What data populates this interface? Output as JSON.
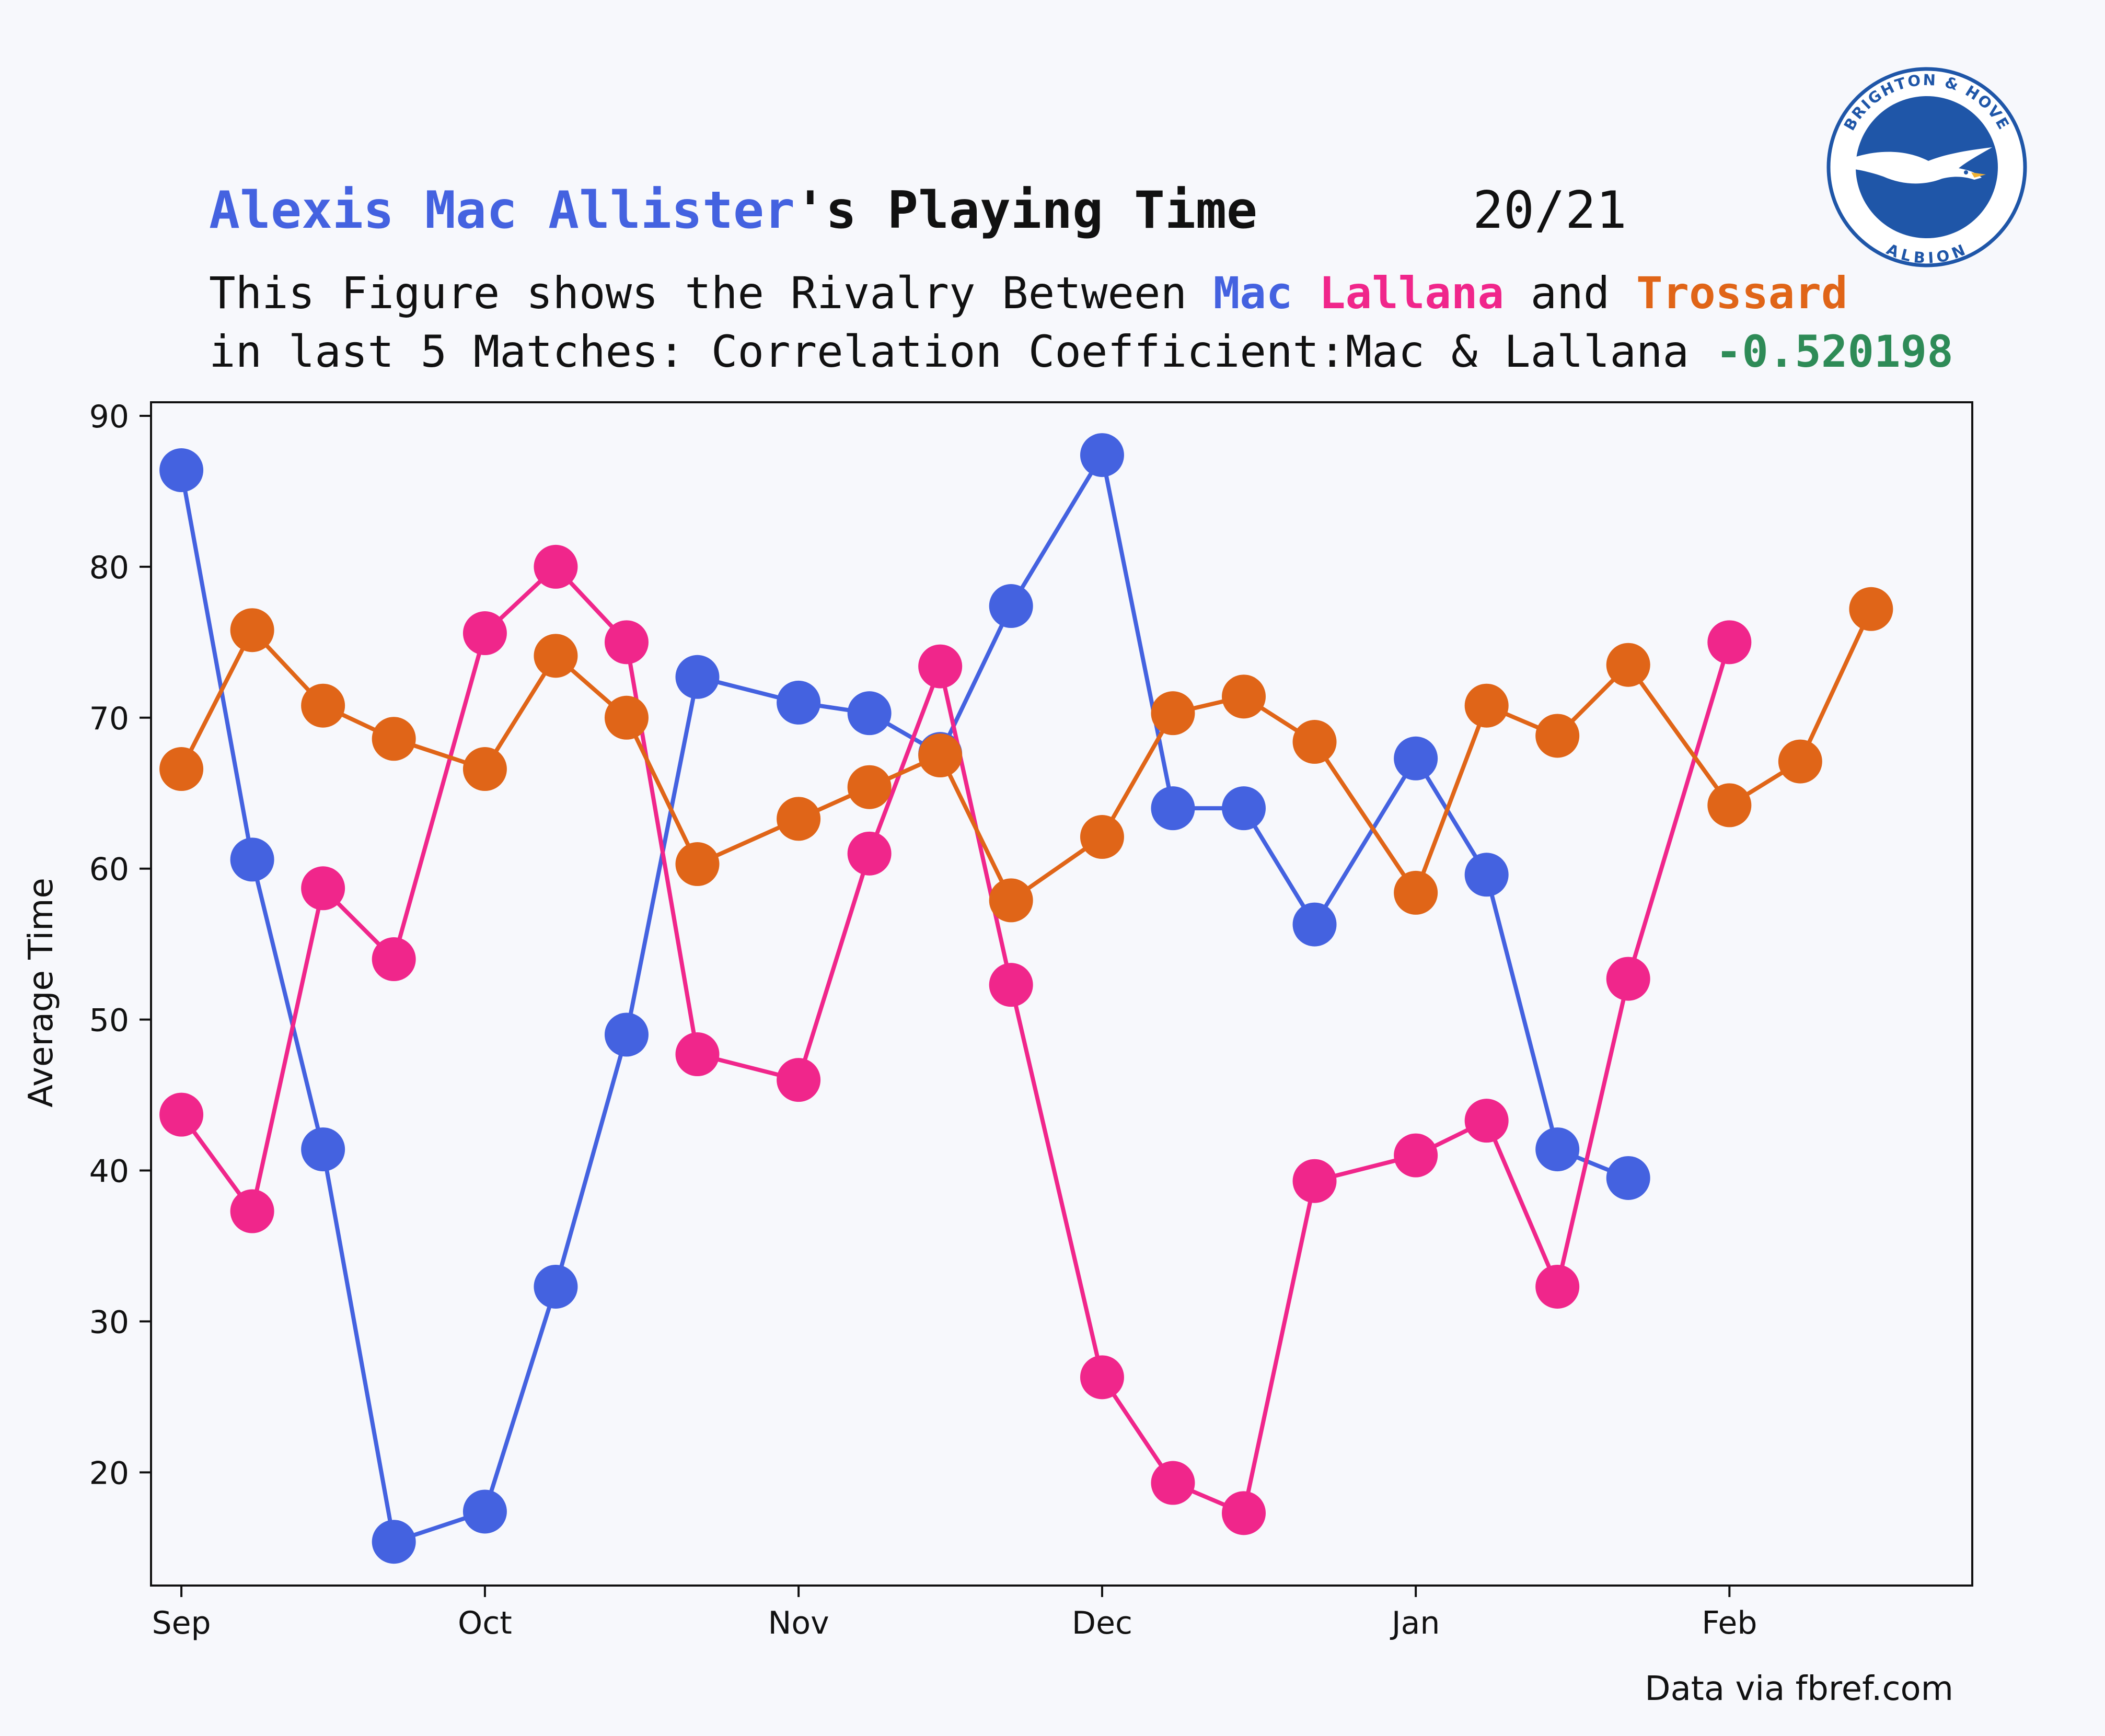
{
  "header": {
    "title_name": "Alexis Mac Allister",
    "title_suffix": "'s Playing Time",
    "season": "20/21",
    "subtitle_line1_prefix": "This Figure shows the Rivalry Between ",
    "subtitle_mac": "Mac",
    "subtitle_lallana": "Lallana",
    "subtitle_and": " and ",
    "subtitle_trossard": "Trossard",
    "subtitle_line2_prefix": "in last 5 Matches: Correlation Coefficient:Mac & Lallana ",
    "correlation": "-0.520198"
  },
  "logo": {
    "top_text": "BRIGHTON & HOVE",
    "bottom_text": "ALBION",
    "icon": "seagull-icon"
  },
  "source_note": "Data via fbref.com",
  "colors": {
    "mac": "#4462e0",
    "lallana": "#f0268b",
    "trossard": "#e06518",
    "correlation": "#2e8b57",
    "background": "#f7f8fc"
  },
  "chart_data": {
    "type": "line",
    "xlabel": "",
    "ylabel": "Average Time",
    "ylim": [
      12.5,
      90.9
    ],
    "xlim": [
      "2020-08-29",
      "2021-02-25"
    ],
    "yticks": [
      20,
      30,
      40,
      50,
      60,
      70,
      80,
      90
    ],
    "xticks": [
      {
        "label": "Sep",
        "date": "2020-09-01"
      },
      {
        "label": "Oct",
        "date": "2020-10-01"
      },
      {
        "label": "Nov",
        "date": "2020-11-01"
      },
      {
        "label": "Dec",
        "date": "2020-12-01"
      },
      {
        "label": "Jan",
        "date": "2021-01-01"
      },
      {
        "label": "Feb",
        "date": "2021-02-01"
      }
    ],
    "grid": false,
    "series": [
      {
        "name": "Mac",
        "color": "#4462e0",
        "points": [
          [
            "2020-09-01",
            86.4
          ],
          [
            "2020-09-08",
            60.6
          ],
          [
            "2020-09-15",
            41.4
          ],
          [
            "2020-09-22",
            15.4
          ],
          [
            "2020-10-01",
            17.4
          ],
          [
            "2020-10-08",
            32.3
          ],
          [
            "2020-10-15",
            49.0
          ],
          [
            "2020-10-22",
            72.7
          ],
          [
            "2020-11-01",
            71.0
          ],
          [
            "2020-11-08",
            70.3
          ],
          [
            "2020-11-15",
            67.6
          ],
          [
            "2020-11-22",
            77.4
          ],
          [
            "2020-12-01",
            87.4
          ],
          [
            "2020-12-08",
            64.0
          ],
          [
            "2020-12-15",
            64.0
          ],
          [
            "2020-12-22",
            56.3
          ],
          [
            "2021-01-01",
            67.3
          ],
          [
            "2021-01-08",
            59.6
          ],
          [
            "2021-01-15",
            41.4
          ],
          [
            "2021-01-22",
            39.5
          ]
        ]
      },
      {
        "name": "Lallana",
        "color": "#f0268b",
        "points": [
          [
            "2020-09-01",
            43.7
          ],
          [
            "2020-09-08",
            37.3
          ],
          [
            "2020-09-15",
            58.7
          ],
          [
            "2020-09-22",
            54.0
          ],
          [
            "2020-10-01",
            75.6
          ],
          [
            "2020-10-08",
            80.0
          ],
          [
            "2020-10-15",
            75.0
          ],
          [
            "2020-10-22",
            47.7
          ],
          [
            "2020-11-01",
            46.0
          ],
          [
            "2020-11-08",
            61.0
          ],
          [
            "2020-11-15",
            73.4
          ],
          [
            "2020-11-22",
            52.3
          ],
          [
            "2020-12-01",
            26.3
          ],
          [
            "2020-12-08",
            19.3
          ],
          [
            "2020-12-15",
            17.3
          ],
          [
            "2020-12-22",
            39.3
          ],
          [
            "2021-01-01",
            41.0
          ],
          [
            "2021-01-08",
            43.3
          ],
          [
            "2021-01-15",
            32.3
          ],
          [
            "2021-01-22",
            52.7
          ],
          [
            "2021-02-01",
            75.0
          ]
        ]
      },
      {
        "name": "Trossard",
        "color": "#e06518",
        "points": [
          [
            "2020-09-01",
            66.6
          ],
          [
            "2020-09-08",
            75.8
          ],
          [
            "2020-09-15",
            70.8
          ],
          [
            "2020-09-22",
            68.6
          ],
          [
            "2020-10-01",
            66.6
          ],
          [
            "2020-10-08",
            74.1
          ],
          [
            "2020-10-15",
            70.0
          ],
          [
            "2020-10-22",
            60.3
          ],
          [
            "2020-11-01",
            63.3
          ],
          [
            "2020-11-08",
            65.4
          ],
          [
            "2020-11-15",
            67.5
          ],
          [
            "2020-11-22",
            57.9
          ],
          [
            "2020-12-01",
            62.1
          ],
          [
            "2020-12-08",
            70.3
          ],
          [
            "2020-12-15",
            71.4
          ],
          [
            "2020-12-22",
            68.4
          ],
          [
            "2021-01-01",
            58.4
          ],
          [
            "2021-01-08",
            70.8
          ],
          [
            "2021-01-15",
            68.8
          ],
          [
            "2021-01-22",
            73.5
          ],
          [
            "2021-02-01",
            64.2
          ],
          [
            "2021-02-08",
            67.1
          ],
          [
            "2021-02-15",
            77.2
          ]
        ]
      }
    ]
  }
}
